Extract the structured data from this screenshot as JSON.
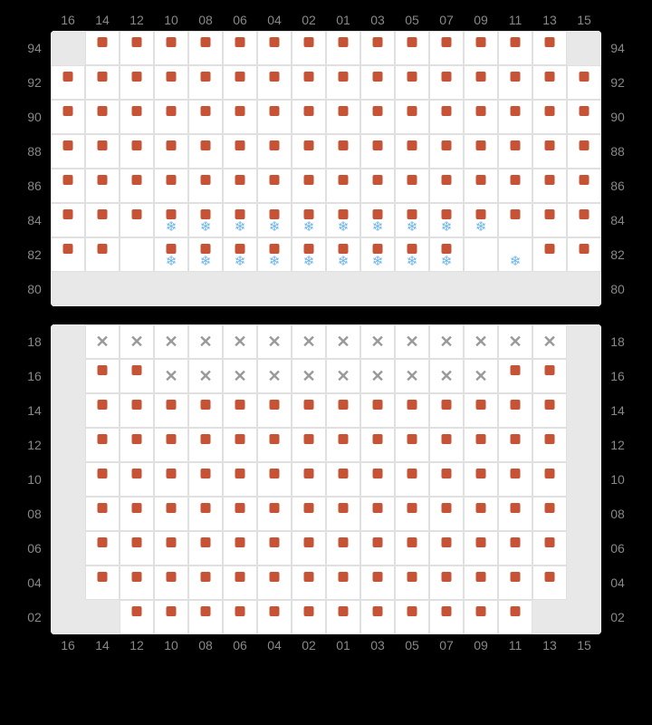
{
  "colors": {
    "seat": "#c65336",
    "snow": "#6db4e8",
    "unavail": "#999",
    "cell_bg": "#ffffff",
    "disabled_bg": "#e8e8e8",
    "border": "#e0e0e0",
    "label": "#888888",
    "page_bg": "#000000"
  },
  "cell_size": {
    "height": 38,
    "seat_size": 11
  },
  "column_labels": [
    "16",
    "14",
    "12",
    "10",
    "08",
    "06",
    "04",
    "02",
    "01",
    "03",
    "05",
    "07",
    "09",
    "11",
    "13",
    "15"
  ],
  "sections": [
    {
      "name": "upper",
      "col_labels_position": "top",
      "rows": [
        {
          "label": "94",
          "cells": [
            {
              "t": "d"
            },
            {
              "t": "s"
            },
            {
              "t": "s"
            },
            {
              "t": "s"
            },
            {
              "t": "s"
            },
            {
              "t": "s"
            },
            {
              "t": "s"
            },
            {
              "t": "s"
            },
            {
              "t": "s"
            },
            {
              "t": "s"
            },
            {
              "t": "s"
            },
            {
              "t": "s"
            },
            {
              "t": "s"
            },
            {
              "t": "s"
            },
            {
              "t": "s"
            },
            {
              "t": "d"
            }
          ]
        },
        {
          "label": "92",
          "cells": [
            {
              "t": "s"
            },
            {
              "t": "s"
            },
            {
              "t": "s"
            },
            {
              "t": "s"
            },
            {
              "t": "s"
            },
            {
              "t": "s"
            },
            {
              "t": "s"
            },
            {
              "t": "s"
            },
            {
              "t": "s"
            },
            {
              "t": "s"
            },
            {
              "t": "s"
            },
            {
              "t": "s"
            },
            {
              "t": "s"
            },
            {
              "t": "s"
            },
            {
              "t": "s"
            },
            {
              "t": "s"
            }
          ]
        },
        {
          "label": "90",
          "cells": [
            {
              "t": "s"
            },
            {
              "t": "s"
            },
            {
              "t": "s"
            },
            {
              "t": "s"
            },
            {
              "t": "s"
            },
            {
              "t": "s"
            },
            {
              "t": "s"
            },
            {
              "t": "s"
            },
            {
              "t": "s"
            },
            {
              "t": "s"
            },
            {
              "t": "s"
            },
            {
              "t": "s"
            },
            {
              "t": "s"
            },
            {
              "t": "s"
            },
            {
              "t": "s"
            },
            {
              "t": "s"
            }
          ]
        },
        {
          "label": "88",
          "cells": [
            {
              "t": "s"
            },
            {
              "t": "s"
            },
            {
              "t": "s"
            },
            {
              "t": "s"
            },
            {
              "t": "s"
            },
            {
              "t": "s"
            },
            {
              "t": "s"
            },
            {
              "t": "s"
            },
            {
              "t": "s"
            },
            {
              "t": "s"
            },
            {
              "t": "s"
            },
            {
              "t": "s"
            },
            {
              "t": "s"
            },
            {
              "t": "s"
            },
            {
              "t": "s"
            },
            {
              "t": "s"
            }
          ]
        },
        {
          "label": "86",
          "cells": [
            {
              "t": "s"
            },
            {
              "t": "s"
            },
            {
              "t": "s"
            },
            {
              "t": "s"
            },
            {
              "t": "s"
            },
            {
              "t": "s"
            },
            {
              "t": "s"
            },
            {
              "t": "s"
            },
            {
              "t": "s"
            },
            {
              "t": "s"
            },
            {
              "t": "s"
            },
            {
              "t": "s"
            },
            {
              "t": "s"
            },
            {
              "t": "s"
            },
            {
              "t": "s"
            },
            {
              "t": "s"
            }
          ]
        },
        {
          "label": "84",
          "cells": [
            {
              "t": "s"
            },
            {
              "t": "s"
            },
            {
              "t": "s"
            },
            {
              "t": "sf"
            },
            {
              "t": "sf"
            },
            {
              "t": "sf"
            },
            {
              "t": "sf"
            },
            {
              "t": "sf"
            },
            {
              "t": "sf"
            },
            {
              "t": "sf"
            },
            {
              "t": "sf"
            },
            {
              "t": "sf"
            },
            {
              "t": "sf"
            },
            {
              "t": "s"
            },
            {
              "t": "s"
            },
            {
              "t": "s"
            }
          ]
        },
        {
          "label": "82",
          "cells": [
            {
              "t": "s"
            },
            {
              "t": "s"
            },
            {
              "t": "e"
            },
            {
              "t": "sf"
            },
            {
              "t": "sf"
            },
            {
              "t": "sf"
            },
            {
              "t": "sf"
            },
            {
              "t": "sf"
            },
            {
              "t": "sf"
            },
            {
              "t": "sf"
            },
            {
              "t": "sf"
            },
            {
              "t": "sf"
            },
            {
              "t": "e"
            },
            {
              "t": "f"
            },
            {
              "t": "s"
            },
            {
              "t": "s"
            }
          ]
        },
        {
          "label": "80",
          "cells": [
            {
              "t": "d"
            },
            {
              "t": "d"
            },
            {
              "t": "d"
            },
            {
              "t": "d"
            },
            {
              "t": "d"
            },
            {
              "t": "d"
            },
            {
              "t": "d"
            },
            {
              "t": "d"
            },
            {
              "t": "d"
            },
            {
              "t": "d"
            },
            {
              "t": "d"
            },
            {
              "t": "d"
            },
            {
              "t": "d"
            },
            {
              "t": "d"
            },
            {
              "t": "d"
            },
            {
              "t": "d"
            }
          ]
        }
      ]
    },
    {
      "name": "lower",
      "col_labels_position": "bottom",
      "rows": [
        {
          "label": "18",
          "cells": [
            {
              "t": "d"
            },
            {
              "t": "x"
            },
            {
              "t": "x"
            },
            {
              "t": "x"
            },
            {
              "t": "x"
            },
            {
              "t": "x"
            },
            {
              "t": "x"
            },
            {
              "t": "x"
            },
            {
              "t": "x"
            },
            {
              "t": "x"
            },
            {
              "t": "x"
            },
            {
              "t": "x"
            },
            {
              "t": "x"
            },
            {
              "t": "x"
            },
            {
              "t": "x"
            },
            {
              "t": "d"
            }
          ]
        },
        {
          "label": "16",
          "cells": [
            {
              "t": "d"
            },
            {
              "t": "s"
            },
            {
              "t": "s"
            },
            {
              "t": "x"
            },
            {
              "t": "x"
            },
            {
              "t": "x"
            },
            {
              "t": "x"
            },
            {
              "t": "x"
            },
            {
              "t": "x"
            },
            {
              "t": "x"
            },
            {
              "t": "x"
            },
            {
              "t": "x"
            },
            {
              "t": "x"
            },
            {
              "t": "s"
            },
            {
              "t": "s"
            },
            {
              "t": "d"
            }
          ]
        },
        {
          "label": "14",
          "cells": [
            {
              "t": "d"
            },
            {
              "t": "s"
            },
            {
              "t": "s"
            },
            {
              "t": "s"
            },
            {
              "t": "s"
            },
            {
              "t": "s"
            },
            {
              "t": "s"
            },
            {
              "t": "s"
            },
            {
              "t": "s"
            },
            {
              "t": "s"
            },
            {
              "t": "s"
            },
            {
              "t": "s"
            },
            {
              "t": "s"
            },
            {
              "t": "s"
            },
            {
              "t": "s"
            },
            {
              "t": "d"
            }
          ]
        },
        {
          "label": "12",
          "cells": [
            {
              "t": "d"
            },
            {
              "t": "s"
            },
            {
              "t": "s"
            },
            {
              "t": "s"
            },
            {
              "t": "s"
            },
            {
              "t": "s"
            },
            {
              "t": "s"
            },
            {
              "t": "s"
            },
            {
              "t": "s"
            },
            {
              "t": "s"
            },
            {
              "t": "s"
            },
            {
              "t": "s"
            },
            {
              "t": "s"
            },
            {
              "t": "s"
            },
            {
              "t": "s"
            },
            {
              "t": "d"
            }
          ]
        },
        {
          "label": "10",
          "cells": [
            {
              "t": "d"
            },
            {
              "t": "s"
            },
            {
              "t": "s"
            },
            {
              "t": "s"
            },
            {
              "t": "s"
            },
            {
              "t": "s"
            },
            {
              "t": "s"
            },
            {
              "t": "s"
            },
            {
              "t": "s"
            },
            {
              "t": "s"
            },
            {
              "t": "s"
            },
            {
              "t": "s"
            },
            {
              "t": "s"
            },
            {
              "t": "s"
            },
            {
              "t": "s"
            },
            {
              "t": "d"
            }
          ]
        },
        {
          "label": "08",
          "cells": [
            {
              "t": "d"
            },
            {
              "t": "s"
            },
            {
              "t": "s"
            },
            {
              "t": "s"
            },
            {
              "t": "s"
            },
            {
              "t": "s"
            },
            {
              "t": "s"
            },
            {
              "t": "s"
            },
            {
              "t": "s"
            },
            {
              "t": "s"
            },
            {
              "t": "s"
            },
            {
              "t": "s"
            },
            {
              "t": "s"
            },
            {
              "t": "s"
            },
            {
              "t": "s"
            },
            {
              "t": "d"
            }
          ]
        },
        {
          "label": "06",
          "cells": [
            {
              "t": "d"
            },
            {
              "t": "s"
            },
            {
              "t": "s"
            },
            {
              "t": "s"
            },
            {
              "t": "s"
            },
            {
              "t": "s"
            },
            {
              "t": "s"
            },
            {
              "t": "s"
            },
            {
              "t": "s"
            },
            {
              "t": "s"
            },
            {
              "t": "s"
            },
            {
              "t": "s"
            },
            {
              "t": "s"
            },
            {
              "t": "s"
            },
            {
              "t": "s"
            },
            {
              "t": "d"
            }
          ]
        },
        {
          "label": "04",
          "cells": [
            {
              "t": "d"
            },
            {
              "t": "s"
            },
            {
              "t": "s"
            },
            {
              "t": "s"
            },
            {
              "t": "s"
            },
            {
              "t": "s"
            },
            {
              "t": "s"
            },
            {
              "t": "s"
            },
            {
              "t": "s"
            },
            {
              "t": "s"
            },
            {
              "t": "s"
            },
            {
              "t": "s"
            },
            {
              "t": "s"
            },
            {
              "t": "s"
            },
            {
              "t": "s"
            },
            {
              "t": "d"
            }
          ]
        },
        {
          "label": "02",
          "cells": [
            {
              "t": "d"
            },
            {
              "t": "d"
            },
            {
              "t": "s"
            },
            {
              "t": "s"
            },
            {
              "t": "s"
            },
            {
              "t": "s"
            },
            {
              "t": "s"
            },
            {
              "t": "s"
            },
            {
              "t": "s"
            },
            {
              "t": "s"
            },
            {
              "t": "s"
            },
            {
              "t": "s"
            },
            {
              "t": "s"
            },
            {
              "t": "s"
            },
            {
              "t": "d"
            },
            {
              "t": "d"
            }
          ]
        }
      ]
    }
  ],
  "glyphs": {
    "snow": "❄",
    "x": "✕"
  }
}
